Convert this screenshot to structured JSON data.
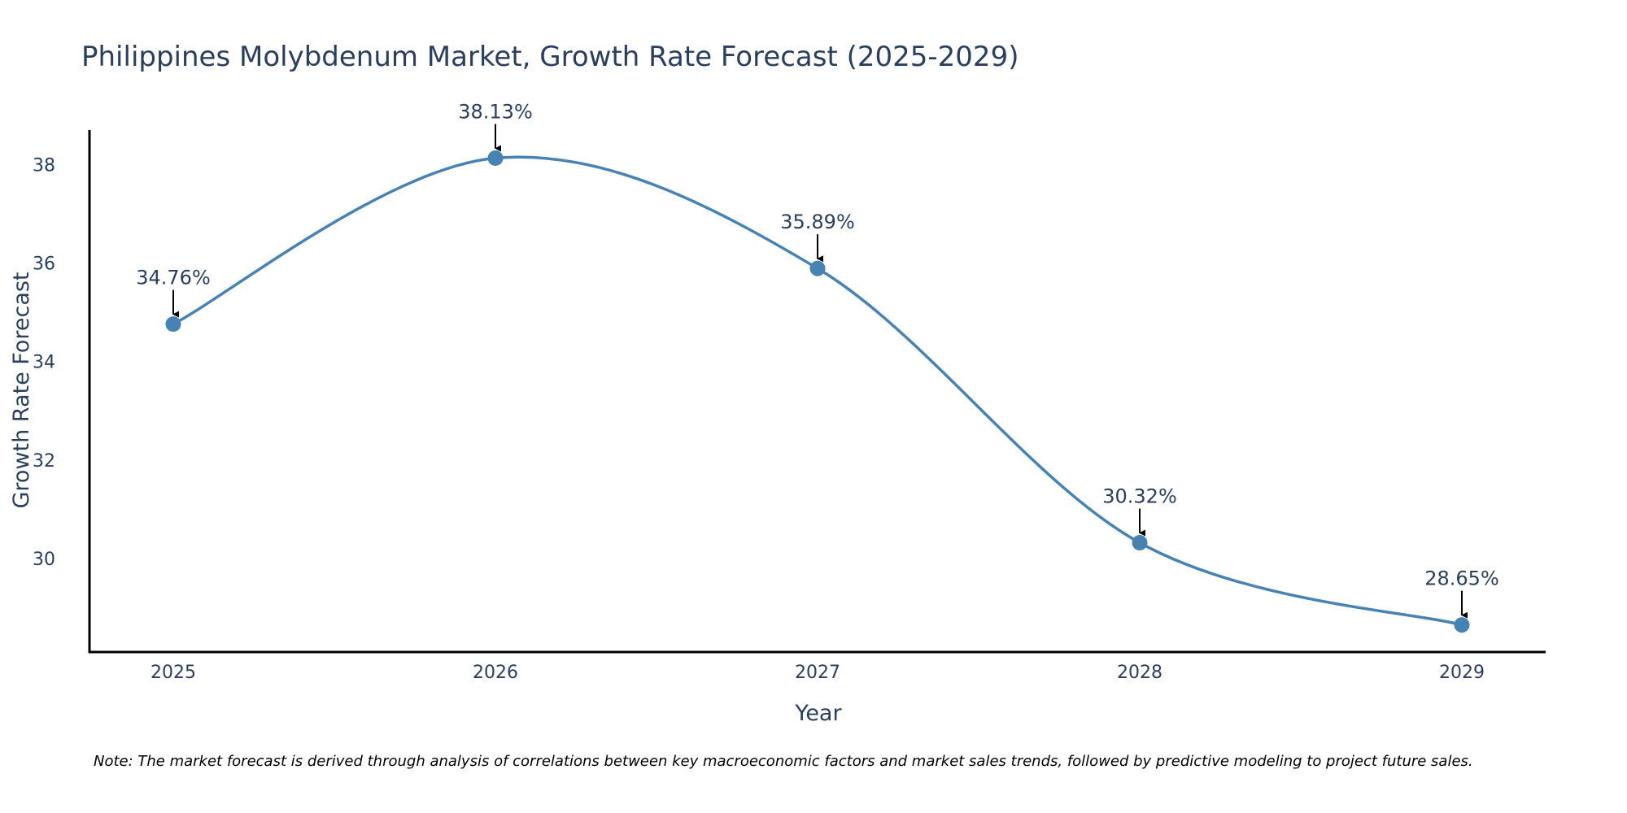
{
  "colors": {
    "line": "#4682b4",
    "marker": "#4682b4",
    "axis": "#000000",
    "text": "#2a3f5f",
    "arrow": "#000000",
    "background": "#ffffff"
  },
  "chart_data": {
    "type": "line",
    "title": "Philippines Molybdenum Market, Growth Rate Forecast (2025-2029)",
    "xlabel": "Year",
    "ylabel": "Growth Rate Forecast",
    "categories": [
      "2025",
      "2026",
      "2027",
      "2028",
      "2029"
    ],
    "series": [
      {
        "name": "Growth Rate Forecast",
        "values": [
          34.76,
          38.13,
          35.89,
          30.32,
          28.65
        ],
        "labels": [
          "34.76%",
          "38.13%",
          "35.89%",
          "30.32%",
          "28.65%"
        ]
      }
    ],
    "ylim": [
      28.1,
      38.7
    ],
    "yticks": [
      "30",
      "32",
      "34",
      "36",
      "38"
    ],
    "line_shape": "spline",
    "grid": false,
    "legend": "none",
    "note": "Note: The market forecast is derived through analysis of correlations between key macroeconomic factors and market sales trends, followed by predictive modeling to project future sales."
  }
}
